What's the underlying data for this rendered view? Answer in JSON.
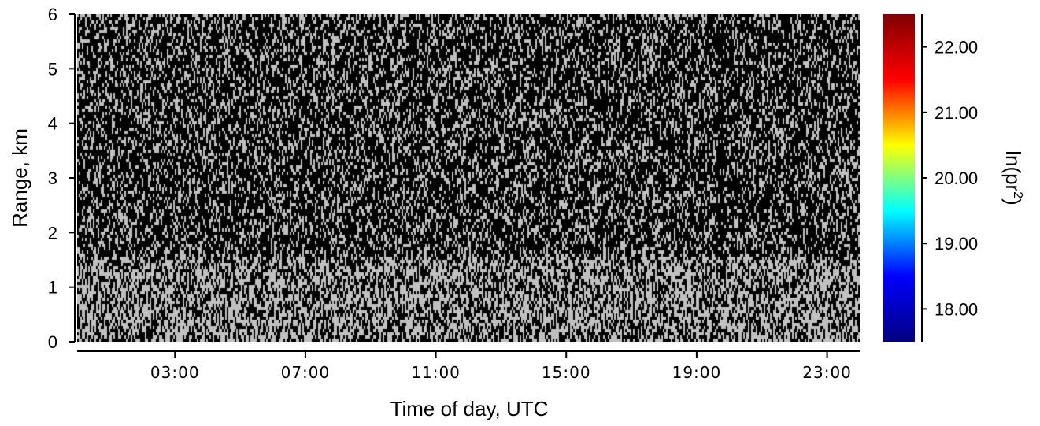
{
  "chart_data": {
    "type": "heatmap",
    "title": "",
    "xlabel": "Time of day, UTC",
    "ylabel": "Range, km",
    "x_ticks": [
      "03:00",
      "07:00",
      "11:00",
      "15:00",
      "19:00",
      "23:00"
    ],
    "x_tick_hours": [
      3,
      7,
      11,
      15,
      19,
      23
    ],
    "xlim_hours": [
      0,
      24
    ],
    "y_ticks": [
      "0",
      "1",
      "2",
      "3",
      "4",
      "5",
      "6"
    ],
    "ylim": [
      0,
      6
    ],
    "colorbar": {
      "label_main": "ln(pr",
      "label_sup": "2",
      "label_end": ")",
      "ticks": [
        "18.00",
        "19.00",
        "20.00",
        "21.00",
        "22.00"
      ],
      "tick_values": [
        18,
        19,
        20,
        21,
        22
      ],
      "range": [
        17.5,
        22.5
      ],
      "colormap": "jet",
      "colors": [
        "#00007f",
        "#0000ff",
        "#00ffff",
        "#ffff00",
        "#ff0000",
        "#7f0000"
      ]
    },
    "pattern": {
      "description_colors": {
        "noise_light": "#c0c0c0",
        "noise_dark": "#000000"
      },
      "dark_density_above_boundary": 0.6,
      "dark_density_below_boundary": 0.38,
      "boundary_range_km": 1.6,
      "dark_streak_hour": 19.7
    }
  }
}
